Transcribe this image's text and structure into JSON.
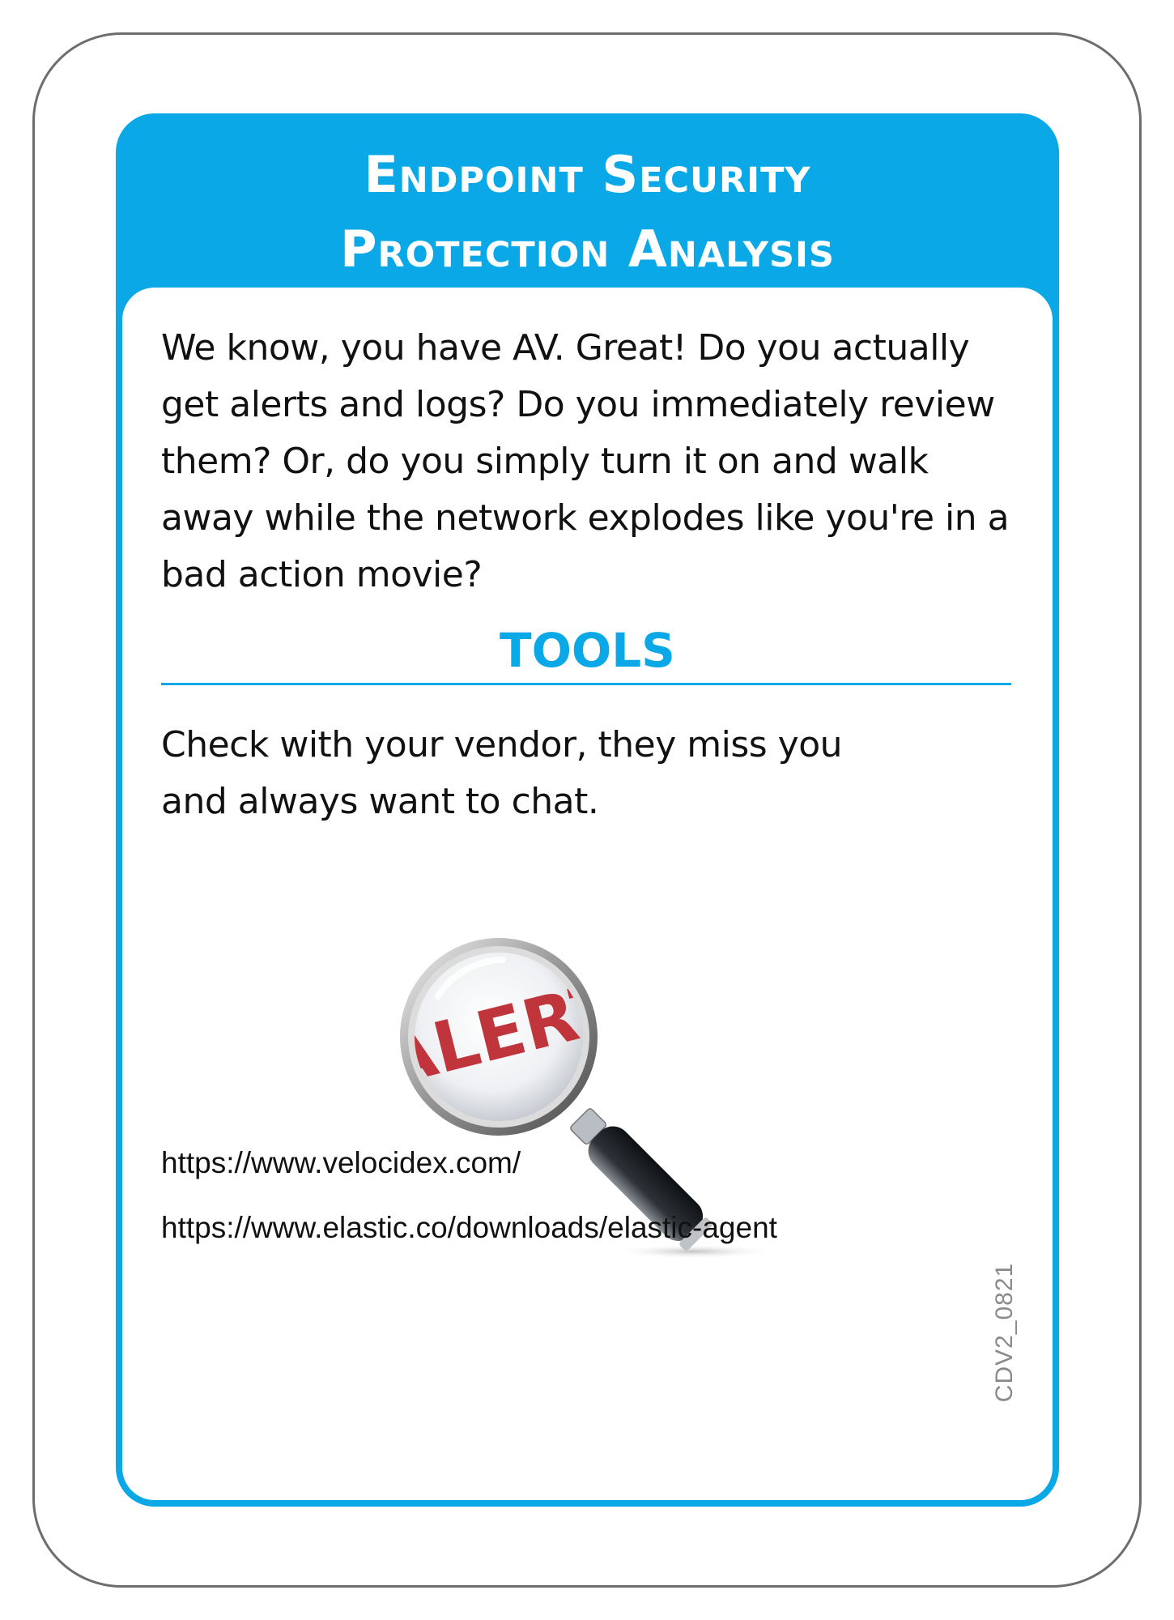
{
  "card": {
    "title_line1": "Endpoint Security",
    "title_line2": "Protection Analysis",
    "description": "We know, you have AV. Great! Do you actually get alerts and logs? Do you immediately review them? Or, do you simply turn it on and walk away while the network explodes like you're in a bad action movie?",
    "tools_heading": "TOOLS",
    "tools_text_line1": "Check with your vendor, they miss you",
    "tools_text_line2": "and always want to chat.",
    "illustration_text": "ALERT",
    "links": [
      "https://www.velocidex.com/",
      "https://www.elastic.co/downloads/elastic-agent"
    ],
    "card_code": "CDV2_0821"
  },
  "colors": {
    "accent": "#0aa8e6",
    "text": "#111111",
    "alert_red": "#c0343c",
    "border": "#6d6d6d"
  },
  "icons": {
    "illustration": "magnifying-glass-icon"
  }
}
